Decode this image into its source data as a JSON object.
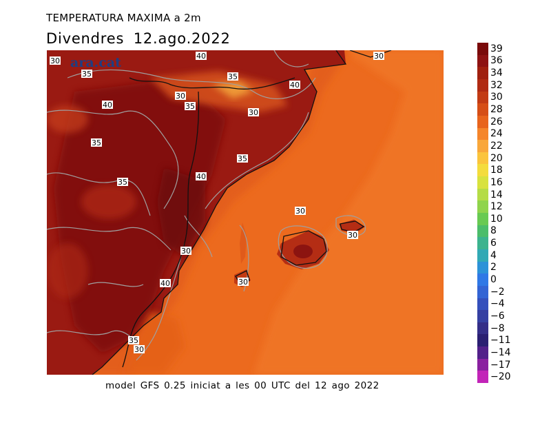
{
  "header": {
    "title": "TEMPERATURA MAXIMA a 2m",
    "date_line": "Divendres  12.ago.2022"
  },
  "brand": "ara.cat",
  "footer": "model GFS 0.25 iniciat a les 00 UTC del 12 ago 2022",
  "colorbar": {
    "labels": [
      "39",
      "36",
      "34",
      "32",
      "30",
      "28",
      "26",
      "24",
      "22",
      "20",
      "18",
      "16",
      "14",
      "12",
      "10",
      "8",
      "6",
      "4",
      "2",
      "0",
      "−2",
      "−4",
      "−6",
      "−8",
      "−11",
      "−14",
      "−17",
      "−20"
    ],
    "colors": [
      "#7a0a0a",
      "#8e1212",
      "#a0200f",
      "#b02a12",
      "#c23b14",
      "#d64e16",
      "#e8641c",
      "#f5852a",
      "#f9a73a",
      "#fbc43c",
      "#f4dc3c",
      "#d8e23e",
      "#b5dc46",
      "#8fd44c",
      "#68ca52",
      "#4bbd6a",
      "#3cb38e",
      "#31a9b5",
      "#2c92d8",
      "#2f78e6",
      "#3364d4",
      "#3450bc",
      "#3540a2",
      "#342e88",
      "#2a1f72",
      "#52208a",
      "#8a20a0",
      "#c224b8"
    ]
  },
  "contour_labels": [
    {
      "text": "30"
    },
    {
      "text": "40"
    },
    {
      "text": "30"
    },
    {
      "text": "35"
    },
    {
      "text": "35"
    },
    {
      "text": "40"
    },
    {
      "text": "30"
    },
    {
      "text": "35"
    },
    {
      "text": "40"
    },
    {
      "text": "30"
    },
    {
      "text": "35"
    },
    {
      "text": "35"
    },
    {
      "text": "35"
    },
    {
      "text": "40"
    },
    {
      "text": "30"
    },
    {
      "text": "30"
    },
    {
      "text": "30"
    },
    {
      "text": "40"
    },
    {
      "text": "30"
    },
    {
      "text": "35"
    },
    {
      "text": "30"
    }
  ]
}
